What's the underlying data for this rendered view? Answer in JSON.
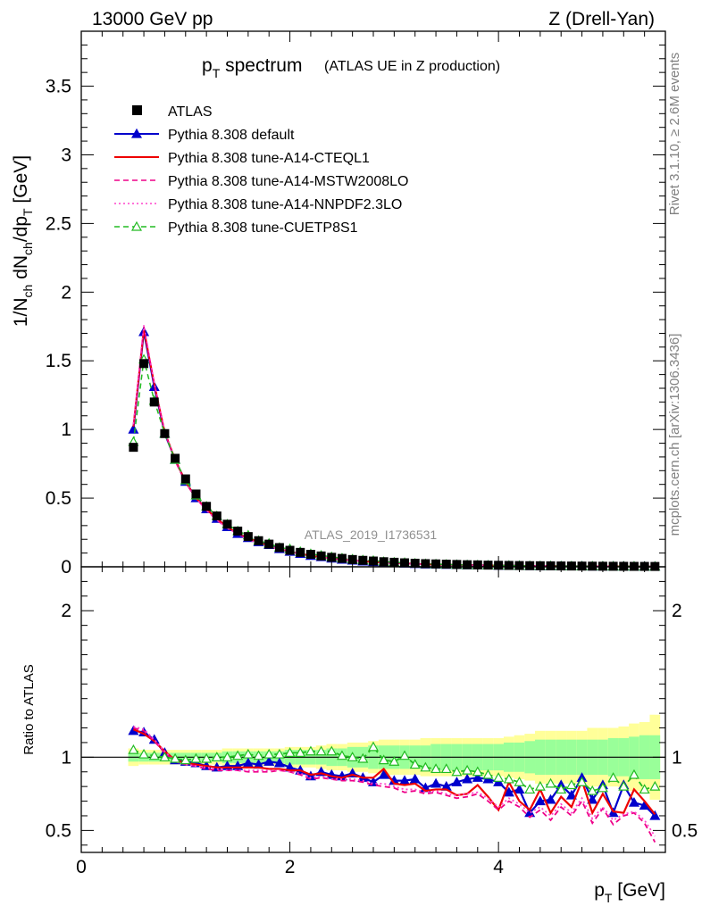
{
  "header": {
    "left": "13000 GeV pp",
    "right": "Z (Drell-Yan)"
  },
  "side_text": {
    "rivet": "Rivet 3.1.10, ≥ 2.6M events",
    "mcplots": "mcplots.cern.ch [arXiv:1306.3436]"
  },
  "chart_data": [
    {
      "type": "scatter",
      "title_main": "p",
      "title_sub": "T",
      "title_rest": " spectrum",
      "title_paren": "(ATLAS UE in Z production)",
      "analysis_label": "ATLAS_2019_I1736531",
      "ylabel": "1/N_ch dN_ch/dp_T [GeV]",
      "xlim": [
        0,
        5.6
      ],
      "ylim": [
        0,
        3.9
      ],
      "yticks": [
        {
          "v": 0,
          "label": "0"
        },
        {
          "v": 0.5,
          "label": "0.5"
        },
        {
          "v": 1,
          "label": "1"
        },
        {
          "v": 1.5,
          "label": "1.5"
        },
        {
          "v": 2,
          "label": "2"
        },
        {
          "v": 2.5,
          "label": "2.5"
        },
        {
          "v": 3,
          "label": "3"
        },
        {
          "v": 3.5,
          "label": "3.5"
        }
      ],
      "legend_placement": "top-left",
      "x": [
        0.5,
        0.6,
        0.7,
        0.8,
        0.9,
        1.0,
        1.1,
        1.2,
        1.3,
        1.4,
        1.5,
        1.6,
        1.7,
        1.8,
        1.9,
        2.0,
        2.1,
        2.2,
        2.3,
        2.4,
        2.5,
        2.6,
        2.7,
        2.8,
        2.9,
        3.0,
        3.1,
        3.2,
        3.3,
        3.4,
        3.5,
        3.6,
        3.7,
        3.8,
        3.9,
        4.0,
        4.1,
        4.2,
        4.3,
        4.4,
        4.5,
        4.6,
        4.7,
        4.8,
        4.9,
        5.0,
        5.1,
        5.2,
        5.3,
        5.4,
        5.5
      ],
      "series": [
        {
          "name": "ATLAS",
          "color": "#000000",
          "marker": "square",
          "values": [
            0.87,
            1.48,
            1.2,
            0.97,
            0.79,
            0.64,
            0.53,
            0.44,
            0.37,
            0.31,
            0.26,
            0.22,
            0.19,
            0.165,
            0.14,
            0.12,
            0.105,
            0.091,
            0.079,
            0.069,
            0.061,
            0.053,
            0.047,
            0.042,
            0.037,
            0.033,
            0.029,
            0.026,
            0.023,
            0.021,
            0.019,
            0.017,
            0.015,
            0.014,
            0.012,
            0.011,
            0.01,
            0.009,
            0.008,
            0.0075,
            0.007,
            0.006,
            0.0055,
            0.005,
            0.0045,
            0.004,
            0.0037,
            0.0034,
            0.0031,
            0.0028,
            0.0025
          ]
        },
        {
          "name": "Pythia 8.308 default",
          "color": "#0000cc",
          "style": "solid",
          "marker": "triangle-filled",
          "values": [
            1.0,
            1.71,
            1.31,
            0.97,
            0.78,
            0.62,
            0.5,
            0.42,
            0.35,
            0.29,
            0.24,
            0.21,
            0.18,
            0.16,
            0.13,
            0.11,
            0.095,
            0.08,
            0.071,
            0.061,
            0.053,
            0.046,
            0.04,
            0.035,
            0.031,
            0.027,
            0.024,
            0.021,
            0.018,
            0.017,
            0.015,
            0.014,
            0.012,
            0.011,
            0.01,
            0.009,
            0.008,
            0.007,
            0.006,
            0.005,
            0.005,
            0.005,
            0.004,
            0.004,
            0.003,
            0.003,
            0.003,
            0.003,
            0.002,
            0.002,
            0.002
          ]
        },
        {
          "name": "Pythia 8.308 tune-A14-CTEQL1",
          "color": "#ee0000",
          "style": "solid",
          "marker": "none",
          "values": [
            1.02,
            1.73,
            1.33,
            0.98,
            0.78,
            0.62,
            0.5,
            0.42,
            0.35,
            0.29,
            0.24,
            0.21,
            0.18,
            0.15,
            0.13,
            0.11,
            0.095,
            0.08,
            0.07,
            0.06,
            0.052,
            0.046,
            0.04,
            0.035,
            0.031,
            0.027,
            0.024,
            0.021,
            0.018,
            0.016,
            0.015,
            0.013,
            0.012,
            0.011,
            0.01,
            0.009,
            0.008,
            0.007,
            0.006,
            0.005,
            0.005,
            0.005,
            0.004,
            0.004,
            0.003,
            0.003,
            0.003,
            0.003,
            0.002,
            0.002,
            0.002
          ]
        },
        {
          "name": "Pythia 8.308 tune-A14-MSTW2008LO",
          "color": "#ee0088",
          "style": "dashed",
          "marker": "none",
          "values": [
            1.03,
            1.75,
            1.33,
            0.98,
            0.77,
            0.61,
            0.5,
            0.41,
            0.34,
            0.28,
            0.24,
            0.2,
            0.17,
            0.15,
            0.13,
            0.11,
            0.092,
            0.078,
            0.068,
            0.059,
            0.051,
            0.045,
            0.039,
            0.034,
            0.03,
            0.026,
            0.023,
            0.02,
            0.018,
            0.016,
            0.014,
            0.013,
            0.011,
            0.01,
            0.009,
            0.008,
            0.007,
            0.006,
            0.006,
            0.005,
            0.005,
            0.004,
            0.004,
            0.003,
            0.003,
            0.003,
            0.003,
            0.002,
            0.002,
            0.002,
            0.002
          ]
        },
        {
          "name": "Pythia 8.308 tune-A14-NNPDF2.3LO",
          "color": "#ff44cc",
          "style": "dotted",
          "marker": "none",
          "values": [
            1.04,
            1.76,
            1.34,
            0.99,
            0.78,
            0.62,
            0.5,
            0.41,
            0.34,
            0.28,
            0.24,
            0.2,
            0.17,
            0.15,
            0.13,
            0.11,
            0.093,
            0.079,
            0.069,
            0.06,
            0.052,
            0.045,
            0.039,
            0.034,
            0.03,
            0.026,
            0.023,
            0.02,
            0.018,
            0.016,
            0.014,
            0.013,
            0.011,
            0.01,
            0.009,
            0.008,
            0.007,
            0.006,
            0.006,
            0.005,
            0.005,
            0.004,
            0.004,
            0.003,
            0.003,
            0.003,
            0.003,
            0.002,
            0.002,
            0.002,
            0.002
          ]
        },
        {
          "name": "Pythia 8.308 tune-CUETP8S1",
          "color": "#22bb22",
          "style": "dashed",
          "marker": "triangle-open",
          "values": [
            0.91,
            1.51,
            1.21,
            0.97,
            0.78,
            0.63,
            0.52,
            0.44,
            0.37,
            0.31,
            0.26,
            0.23,
            0.19,
            0.17,
            0.14,
            0.13,
            0.11,
            0.094,
            0.083,
            0.072,
            0.063,
            0.055,
            0.049,
            0.045,
            0.037,
            0.033,
            0.03,
            0.025,
            0.021,
            0.019,
            0.017,
            0.015,
            0.013,
            0.012,
            0.011,
            0.01,
            0.009,
            0.008,
            0.007,
            0.006,
            0.006,
            0.005,
            0.005,
            0.004,
            0.004,
            0.004,
            0.003,
            0.003,
            0.003,
            0.002,
            0.002
          ]
        }
      ]
    },
    {
      "type": "line",
      "ylabel": "Ratio to ATLAS",
      "xlabel_main": "p",
      "xlabel_sub": "T",
      "xlabel_rest": " [GeV]",
      "xlim": [
        0,
        5.6
      ],
      "ylim": [
        0.35,
        2.3
      ],
      "reference_line": 1,
      "yticks": [
        {
          "v": 0.5,
          "label": "0.5"
        },
        {
          "v": 1,
          "label": "1"
        },
        {
          "v": 2,
          "label": "2"
        }
      ],
      "xticks": [
        {
          "v": 0,
          "label": "0"
        },
        {
          "v": 2,
          "label": "2"
        },
        {
          "v": 4,
          "label": "4"
        }
      ],
      "band_inner_color": "#99ff99",
      "band_outer_color": "#ffff99",
      "x": [
        0.5,
        0.6,
        0.7,
        0.8,
        0.9,
        1.0,
        1.1,
        1.2,
        1.3,
        1.4,
        1.5,
        1.6,
        1.7,
        1.8,
        1.9,
        2.0,
        2.1,
        2.2,
        2.3,
        2.4,
        2.5,
        2.6,
        2.7,
        2.8,
        2.9,
        3.0,
        3.1,
        3.2,
        3.3,
        3.4,
        3.5,
        3.6,
        3.7,
        3.8,
        3.9,
        4.0,
        4.1,
        4.2,
        4.3,
        4.4,
        4.5,
        4.6,
        4.7,
        4.8,
        4.9,
        5.0,
        5.1,
        5.2,
        5.3,
        5.4,
        5.5
      ],
      "band_inner": [
        0.03,
        0.03,
        0.03,
        0.03,
        0.03,
        0.03,
        0.03,
        0.03,
        0.03,
        0.04,
        0.04,
        0.04,
        0.04,
        0.04,
        0.04,
        0.05,
        0.05,
        0.05,
        0.05,
        0.06,
        0.06,
        0.07,
        0.07,
        0.08,
        0.08,
        0.08,
        0.08,
        0.08,
        0.08,
        0.09,
        0.09,
        0.09,
        0.09,
        0.09,
        0.09,
        0.09,
        0.1,
        0.1,
        0.11,
        0.12,
        0.12,
        0.12,
        0.12,
        0.12,
        0.12,
        0.12,
        0.13,
        0.13,
        0.14,
        0.15,
        0.15
      ],
      "band_outer": [
        0.06,
        0.05,
        0.05,
        0.05,
        0.05,
        0.05,
        0.05,
        0.05,
        0.05,
        0.06,
        0.06,
        0.06,
        0.06,
        0.06,
        0.06,
        0.07,
        0.07,
        0.07,
        0.08,
        0.09,
        0.09,
        0.1,
        0.1,
        0.11,
        0.12,
        0.12,
        0.12,
        0.12,
        0.13,
        0.13,
        0.13,
        0.13,
        0.13,
        0.13,
        0.13,
        0.13,
        0.14,
        0.15,
        0.16,
        0.18,
        0.18,
        0.18,
        0.18,
        0.18,
        0.2,
        0.2,
        0.2,
        0.21,
        0.23,
        0.24,
        0.29
      ],
      "series": [
        {
          "name": "Pythia 8.308 default",
          "color": "#0000cc",
          "style": "solid",
          "marker": "triangle-filled",
          "values": [
            1.18,
            1.17,
            1.12,
            1.03,
            0.98,
            0.97,
            0.96,
            0.94,
            0.93,
            0.94,
            0.94,
            0.96,
            0.95,
            0.97,
            0.96,
            0.93,
            0.91,
            0.87,
            0.9,
            0.88,
            0.87,
            0.89,
            0.86,
            0.83,
            0.88,
            0.84,
            0.84,
            0.85,
            0.79,
            0.82,
            0.8,
            0.83,
            0.85,
            0.86,
            0.85,
            0.83,
            0.76,
            0.78,
            0.62,
            0.7,
            0.71,
            0.81,
            0.74,
            0.86,
            0.71,
            0.81,
            0.62,
            0.81,
            0.69,
            0.67,
            0.6
          ]
        },
        {
          "name": "Pythia 8.308 tune-A14-CTEQL1",
          "color": "#ee0000",
          "style": "solid",
          "marker": "none",
          "values": [
            1.19,
            1.16,
            1.11,
            1.04,
            0.98,
            0.96,
            0.95,
            0.94,
            0.93,
            0.93,
            0.93,
            0.93,
            0.93,
            0.92,
            0.92,
            0.91,
            0.91,
            0.88,
            0.89,
            0.87,
            0.86,
            0.88,
            0.86,
            0.86,
            0.92,
            0.82,
            0.81,
            0.82,
            0.77,
            0.78,
            0.78,
            0.74,
            0.75,
            0.81,
            0.73,
            0.64,
            0.83,
            0.7,
            0.64,
            0.78,
            0.62,
            0.73,
            0.66,
            0.84,
            0.62,
            0.75,
            0.63,
            0.62,
            0.78,
            0.7,
            0.61
          ]
        },
        {
          "name": "Pythia 8.308 tune-A14-MSTW2008LO",
          "color": "#ee0088",
          "style": "dashed",
          "marker": "none",
          "values": [
            1.2,
            1.18,
            1.11,
            1.03,
            0.97,
            0.95,
            0.94,
            0.92,
            0.91,
            0.91,
            0.91,
            0.9,
            0.9,
            0.9,
            0.91,
            0.9,
            0.88,
            0.85,
            0.86,
            0.85,
            0.84,
            0.84,
            0.83,
            0.81,
            0.8,
            0.79,
            0.76,
            0.77,
            0.75,
            0.76,
            0.74,
            0.72,
            0.73,
            0.75,
            0.7,
            0.64,
            0.7,
            0.66,
            0.59,
            0.64,
            0.57,
            0.66,
            0.6,
            0.7,
            0.55,
            0.65,
            0.54,
            0.6,
            0.62,
            0.55,
            0.42
          ]
        },
        {
          "name": "Pythia 8.308 tune-A14-NNPDF2.3LO",
          "color": "#ff44cc",
          "style": "dotted",
          "marker": "none",
          "values": [
            1.21,
            1.19,
            1.12,
            1.04,
            0.97,
            0.95,
            0.94,
            0.93,
            0.92,
            0.91,
            0.91,
            0.91,
            0.91,
            0.91,
            0.91,
            0.9,
            0.89,
            0.86,
            0.87,
            0.85,
            0.85,
            0.85,
            0.84,
            0.82,
            0.82,
            0.8,
            0.78,
            0.78,
            0.76,
            0.77,
            0.75,
            0.74,
            0.75,
            0.76,
            0.72,
            0.66,
            0.72,
            0.68,
            0.62,
            0.66,
            0.6,
            0.68,
            0.62,
            0.72,
            0.58,
            0.66,
            0.57,
            0.61,
            0.63,
            0.57,
            0.46
          ]
        },
        {
          "name": "Pythia 8.308 tune-CUETP8S1",
          "color": "#22bb22",
          "style": "dashed",
          "marker": "triangle-open",
          "values": [
            1.05,
            1.02,
            1.01,
            1.0,
            0.99,
            0.98,
            0.99,
            0.99,
            1.0,
            1.0,
            1.01,
            1.02,
            1.01,
            1.02,
            1.02,
            1.03,
            1.03,
            1.04,
            1.04,
            1.04,
            1.01,
            1.0,
            0.99,
            1.07,
            0.98,
            0.97,
            1.01,
            0.95,
            0.93,
            0.92,
            0.92,
            0.9,
            0.91,
            0.9,
            0.88,
            0.86,
            0.85,
            0.83,
            0.78,
            0.8,
            0.82,
            0.78,
            0.81,
            0.83,
            0.77,
            0.79,
            0.86,
            0.8,
            0.88,
            0.78,
            0.8
          ]
        }
      ]
    }
  ]
}
